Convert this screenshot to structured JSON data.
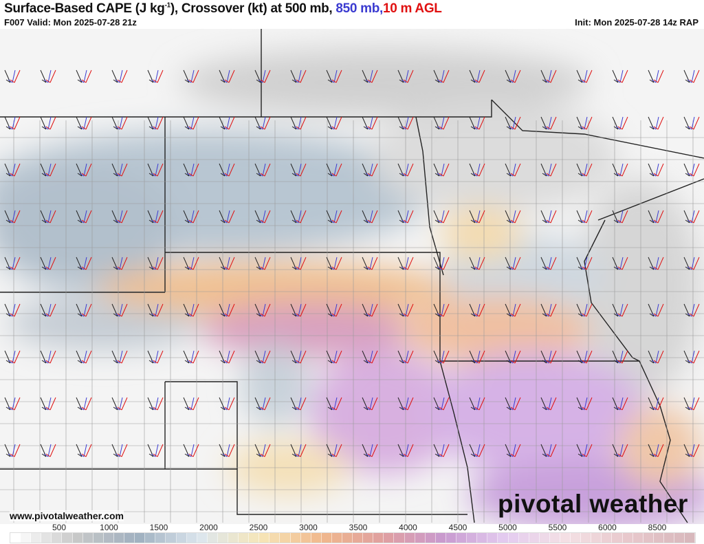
{
  "header": {
    "title_main": "Surface-Based CAPE (J kg",
    "title_sup": "-1",
    "title_rest": "), Crossover (kt) at 500 mb, ",
    "title_850": "850 mb,",
    "title_10m": "10 m AGL",
    "valid": "F007 Valid: Mon 2025-07-28 21z",
    "init": "Init: Mon 2025-07-28 14z RAP"
  },
  "footer": {
    "url": "www.pivotalweather.com",
    "logo": "pivotal weather"
  },
  "colors": {
    "850mb": "#3b3bd0",
    "10m": "#e01010",
    "500mb": "#222222"
  },
  "colorbar": {
    "labels": [
      "500",
      "1000",
      "1500",
      "2000",
      "2500",
      "3000",
      "3500",
      "4000",
      "4500",
      "5000",
      "5500",
      "6000",
      "8500"
    ],
    "stops": [
      "#ffffff",
      "#c8c8c8",
      "#9fb0c0",
      "#dce6ee",
      "#f6e6b8",
      "#f0b88c",
      "#e0a0a0",
      "#c89ad0",
      "#e4ccf0",
      "#f4e0e4",
      "#e8c8cc",
      "#d8b8bc"
    ]
  }
}
